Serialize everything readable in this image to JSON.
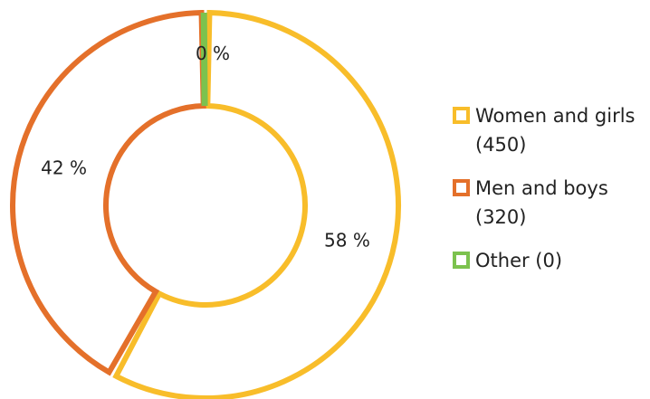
{
  "chart_data": {
    "type": "donut",
    "categories": [
      "Women and girls (450)",
      "Men and boys (320)",
      "Other (0)"
    ],
    "values": [
      58,
      42,
      0
    ],
    "value_labels": [
      "58 %",
      "42 %",
      "0 %"
    ],
    "colors": [
      "#f8bd2a",
      "#e4702a",
      "#7cc24e"
    ],
    "legend": "right"
  }
}
